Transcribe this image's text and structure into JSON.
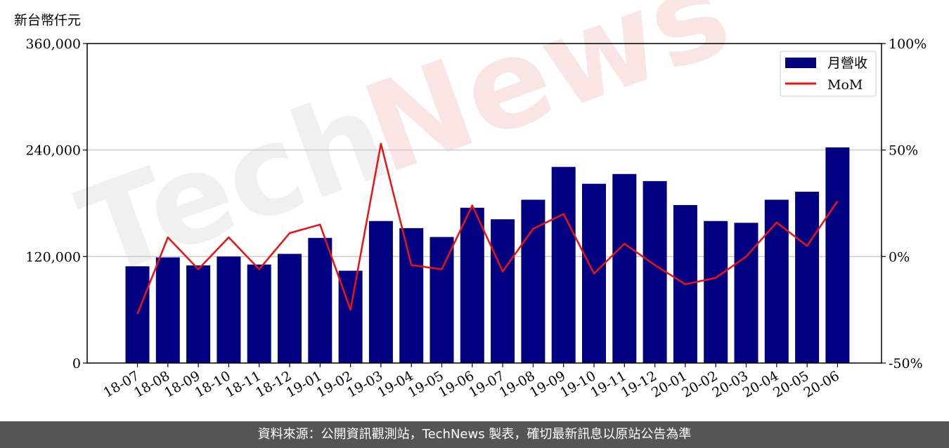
{
  "unit_label": "新台幣仟元",
  "footer_text": "資料來源：公開資訊觀測站，TechNews 製表，確切最新訊息以原站公告為準",
  "watermark": {
    "part1": "Tech",
    "part2": "News"
  },
  "colors": {
    "bar": "#000080",
    "line": "#ee1111",
    "grid": "#cccccc",
    "footer_bg": "#555555"
  },
  "chart_data": {
    "type": "bar",
    "categories": [
      "18-07",
      "18-08",
      "18-09",
      "18-10",
      "18-11",
      "18-12",
      "19-01",
      "19-02",
      "19-03",
      "19-04",
      "19-05",
      "19-06",
      "19-07",
      "19-08",
      "19-09",
      "19-10",
      "19-11",
      "19-12",
      "20-01",
      "20-02",
      "20-03",
      "20-04",
      "20-05",
      "20-06"
    ],
    "series": [
      {
        "name": "月營收",
        "type": "bar",
        "axis": "left",
        "values": [
          109000,
          119000,
          110000,
          120000,
          111000,
          123000,
          141000,
          104000,
          160000,
          152000,
          142000,
          175000,
          162000,
          184000,
          221000,
          202000,
          213000,
          205000,
          178000,
          160000,
          158000,
          184000,
          193000,
          243000
        ]
      },
      {
        "name": "MoM",
        "type": "line",
        "axis": "right",
        "values": [
          -27,
          9,
          -6,
          9,
          -6,
          11,
          15,
          -25,
          53,
          -4,
          -6,
          24,
          -7,
          13,
          20,
          -8,
          6,
          -4,
          -13,
          -10,
          0,
          16,
          5,
          26
        ]
      }
    ],
    "left_axis": {
      "ylim": [
        0,
        360000
      ],
      "ticks": [
        0,
        120000,
        240000,
        360000
      ],
      "tick_labels": [
        "0",
        "120,000",
        "240,000",
        "360,000"
      ]
    },
    "right_axis": {
      "ylim": [
        -50,
        100
      ],
      "ticks": [
        -50,
        0,
        50,
        100
      ],
      "tick_labels": [
        "-50%",
        "0%",
        "50%",
        "100%"
      ]
    },
    "grid": "horizontal",
    "legend_position": "top-right",
    "legend": [
      "月營收",
      "MoM"
    ]
  }
}
